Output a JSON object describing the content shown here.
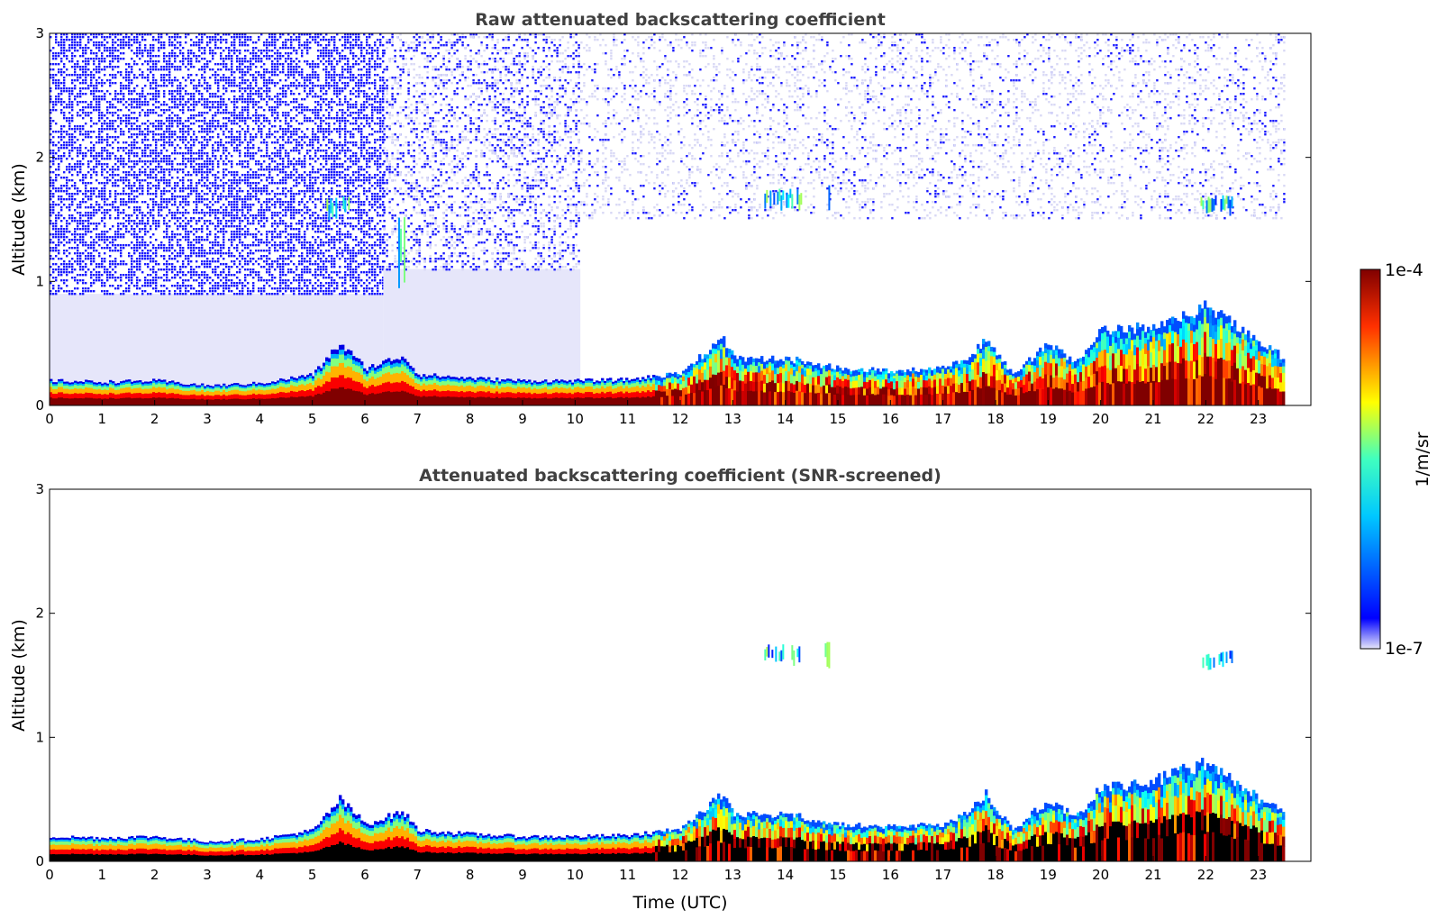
{
  "chart_data": [
    {
      "type": "heatmap",
      "title": "Raw attenuated backscattering coefficient",
      "xlabel": "",
      "ylabel": "Altitude (km)",
      "xlim": [
        0,
        24
      ],
      "ylim": [
        0,
        3
      ],
      "x_ticks": [
        "0",
        "1",
        "2",
        "3",
        "4",
        "5",
        "6",
        "7",
        "8",
        "9",
        "10",
        "11",
        "12",
        "13",
        "14",
        "15",
        "16",
        "17",
        "18",
        "19",
        "20",
        "21",
        "22",
        "23"
      ],
      "y_ticks": [
        "0",
        "1",
        "2",
        "3"
      ],
      "data_end_hour": 23.5,
      "background_noise": [
        {
          "x_start": 0,
          "x_end": 6.35,
          "y_min": 0.9,
          "level": "high"
        },
        {
          "x_start": 6.35,
          "x_end": 10.1,
          "y_min": 1.1,
          "level": "medium"
        },
        {
          "x_start": 10.1,
          "x_end": 23.5,
          "y_min": 1.5,
          "level": "sparse"
        }
      ],
      "features": [
        {
          "name": "aerosol layer",
          "x": [
            5.2,
            5.7
          ],
          "y": [
            1.5,
            1.7
          ],
          "value": "moderate"
        },
        {
          "name": "aerosol layer",
          "x": [
            6.6,
            6.75
          ],
          "y": [
            1.0,
            1.65
          ],
          "value": "moderate"
        },
        {
          "name": "cloud",
          "x": [
            13.6,
            14.3
          ],
          "y": [
            1.6,
            1.75
          ],
          "value": "moderate"
        },
        {
          "name": "cloud",
          "x": [
            14.75,
            14.85
          ],
          "y": [
            1.6,
            1.85
          ],
          "value": "moderate"
        },
        {
          "name": "cloud",
          "x": [
            21.9,
            22.5
          ],
          "y": [
            1.55,
            1.7
          ],
          "value": "moderate"
        }
      ]
    },
    {
      "type": "heatmap",
      "title": "Attenuated backscattering coefficient (SNR-screened)",
      "xlabel": "Time (UTC)",
      "ylabel": "Altitude (km)",
      "xlim": [
        0,
        24
      ],
      "ylim": [
        0,
        3
      ],
      "x_ticks": [
        "0",
        "1",
        "2",
        "3",
        "4",
        "5",
        "6",
        "7",
        "8",
        "9",
        "10",
        "11",
        "12",
        "13",
        "14",
        "15",
        "16",
        "17",
        "18",
        "19",
        "20",
        "21",
        "22",
        "23"
      ],
      "y_ticks": [
        "0",
        "1",
        "2",
        "3"
      ],
      "data_end_hour": 23.5,
      "boundary_layer_top_km": {
        "hours": [
          0,
          1,
          2,
          3,
          4,
          5,
          5.5,
          6,
          6.7,
          7,
          8,
          9,
          10,
          11,
          12,
          12.8,
          13,
          14,
          15,
          16,
          17,
          17.5,
          17.8,
          18.3,
          19,
          19.5,
          20,
          20.5,
          21,
          21.5,
          22,
          22.5,
          23,
          23.5
        ],
        "values": [
          0.2,
          0.19,
          0.2,
          0.16,
          0.18,
          0.25,
          0.5,
          0.3,
          0.4,
          0.25,
          0.22,
          0.2,
          0.2,
          0.21,
          0.26,
          0.55,
          0.38,
          0.38,
          0.3,
          0.28,
          0.3,
          0.4,
          0.55,
          0.25,
          0.5,
          0.35,
          0.6,
          0.62,
          0.65,
          0.72,
          0.8,
          0.65,
          0.5,
          0.38
        ]
      },
      "features": [
        {
          "name": "cloud",
          "x": [
            13.6,
            14.3
          ],
          "y": [
            1.6,
            1.75
          ],
          "value": "moderate"
        },
        {
          "name": "cloud",
          "x": [
            14.75,
            14.85
          ],
          "y": [
            1.6,
            1.85
          ],
          "value": "moderate"
        },
        {
          "name": "cloud",
          "x": [
            21.9,
            22.5
          ],
          "y": [
            1.55,
            1.7
          ],
          "value": "moderate"
        }
      ]
    }
  ],
  "colorbar": {
    "label": "1/m/sr",
    "max_label": "1e-4",
    "min_label": "1e-7",
    "colormap": "jet"
  }
}
